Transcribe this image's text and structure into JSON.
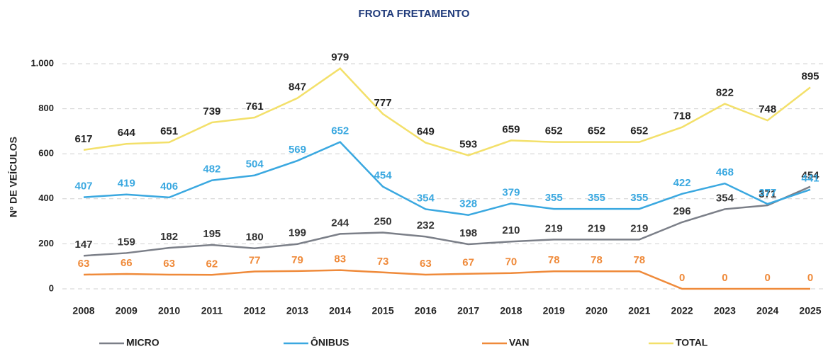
{
  "chart_data": {
    "type": "line",
    "title": "FROTA FRETAMENTO",
    "y_label": "Nº DE VEÍCULOS",
    "categories": [
      "2008",
      "2009",
      "2010",
      "2011",
      "2012",
      "2013",
      "2014",
      "2015",
      "2016",
      "2017",
      "2018",
      "2019",
      "2020",
      "2021",
      "2022",
      "2023",
      "2024",
      "2025"
    ],
    "series": [
      {
        "name": "MICRO",
        "color": "#7b7f88",
        "label_color": "#333333",
        "values": [
          147,
          159,
          182,
          195,
          180,
          199,
          244,
          250,
          232,
          198,
          210,
          219,
          219,
          219,
          296,
          354,
          371,
          454
        ]
      },
      {
        "name": "ÔNIBUS",
        "color": "#3aa8e0",
        "label_color": "#3aa8e0",
        "values": [
          407,
          419,
          406,
          482,
          504,
          569,
          652,
          454,
          354,
          328,
          379,
          355,
          355,
          355,
          422,
          468,
          377,
          441
        ]
      },
      {
        "name": "VAN",
        "color": "#ef8a3a",
        "label_color": "#ef8a3a",
        "values": [
          63,
          66,
          63,
          62,
          77,
          79,
          83,
          73,
          63,
          67,
          70,
          78,
          78,
          78,
          0,
          0,
          0,
          0
        ]
      },
      {
        "name": "TOTAL",
        "color": "#f3e06a",
        "label_color": "#222222",
        "values": [
          617,
          644,
          651,
          739,
          761,
          847,
          979,
          777,
          649,
          593,
          659,
          652,
          652,
          652,
          718,
          822,
          748,
          895
        ]
      }
    ],
    "ylim": [
      0,
      1000
    ],
    "yticks": [
      0,
      200,
      400,
      600,
      800,
      {
        "value": 1000,
        "label": "1.000"
      }
    ],
    "grid": true
  }
}
